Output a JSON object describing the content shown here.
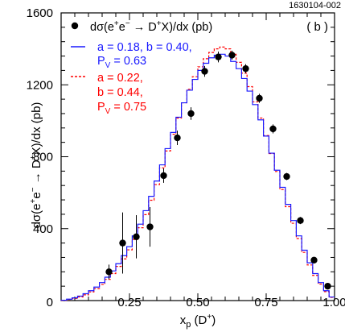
{
  "chart_data": {
    "type": "scatter",
    "figure_id": "1630104-002",
    "panel_label": "( b )",
    "xlabel": {
      "main": "x",
      "sub": "p",
      "rest": " (D",
      "sup": "+",
      "end": ")"
    },
    "ylabel": {
      "pre": "dσ(e",
      "sup1": "+",
      "mid": "e",
      "sup2": "−",
      "arrow": " → D",
      "sup3": "+",
      "post": "X)/dx (pb)"
    },
    "xlim": [
      0,
      1.0
    ],
    "ylim": [
      0,
      1600
    ],
    "xticks": [
      {
        "v": 0.25,
        "label": "0.25"
      },
      {
        "v": 0.5,
        "label": "0.50"
      },
      {
        "v": 0.75,
        "label": "0.75"
      },
      {
        "v": 1.0,
        "label": "1.00"
      }
    ],
    "x_origin_label": "0",
    "yticks": [
      {
        "v": 400,
        "label": "400"
      },
      {
        "v": 800,
        "label": "800"
      },
      {
        "v": 1200,
        "label": "1200"
      },
      {
        "v": 1600,
        "label": "1600"
      }
    ],
    "y_origin_label": "0",
    "legend": {
      "placement": "top-left",
      "data": {
        "pre": "dσ(e",
        "sup1": "+",
        "mid": "e",
        "sup2": "−",
        "arrow": " → D",
        "sup3": "+",
        "post": "X)/dx (pb)"
      },
      "blue": {
        "line1": "a = 0.18, b = 0.40,",
        "line2_pre": "P",
        "line2_sub": "V",
        "line2_post": " = 0.63"
      },
      "red": {
        "line1": "a = 0.22,",
        "line2": "b = 0.44,",
        "line3_pre": "P",
        "line3_sub": "V",
        "line3_post": " = 0.75"
      }
    },
    "colors": {
      "data": "#000000",
      "blue": "#1a1aff",
      "red": "#ff0000"
    },
    "series": [
      {
        "style": "points-with-errors",
        "points": [
          {
            "x": 0.175,
            "y": 160,
            "err": 40
          },
          {
            "x": 0.225,
            "y": 320,
            "err": 170
          },
          {
            "x": 0.275,
            "y": 355,
            "err": 120
          },
          {
            "x": 0.325,
            "y": 410,
            "err": 110
          },
          {
            "x": 0.375,
            "y": 695,
            "err": 40
          },
          {
            "x": 0.425,
            "y": 905,
            "err": 40
          },
          {
            "x": 0.475,
            "y": 1040,
            "err": 35
          },
          {
            "x": 0.525,
            "y": 1275,
            "err": 30
          },
          {
            "x": 0.575,
            "y": 1355,
            "err": 30
          },
          {
            "x": 0.625,
            "y": 1365,
            "err": 25
          },
          {
            "x": 0.675,
            "y": 1290,
            "err": 25
          },
          {
            "x": 0.725,
            "y": 1125,
            "err": 25
          },
          {
            "x": 0.775,
            "y": 955,
            "err": 25
          },
          {
            "x": 0.825,
            "y": 690,
            "err": 20
          },
          {
            "x": 0.875,
            "y": 445,
            "err": 20
          },
          {
            "x": 0.925,
            "y": 225,
            "err": 15
          },
          {
            "x": 0.975,
            "y": 80,
            "err": 12
          }
        ]
      },
      {
        "style": "histogram-solid",
        "bin_width": 0.02,
        "x_start": 0.0,
        "values": [
          2,
          8,
          15,
          25,
          38,
          55,
          75,
          100,
          130,
          165,
          205,
          250,
          300,
          360,
          425,
          500,
          580,
          665,
          755,
          845,
          935,
          1020,
          1100,
          1170,
          1230,
          1280,
          1320,
          1350,
          1365,
          1370,
          1360,
          1330,
          1290,
          1235,
          1165,
          1090,
          1005,
          915,
          820,
          725,
          630,
          535,
          445,
          360,
          280,
          210,
          150,
          100,
          55,
          20
        ]
      },
      {
        "style": "histogram-dashed",
        "bin_width": 0.02,
        "x_start": 0.0,
        "values": [
          1,
          6,
          12,
          20,
          32,
          48,
          66,
          90,
          118,
          150,
          190,
          232,
          282,
          340,
          405,
          478,
          558,
          645,
          738,
          832,
          925,
          1015,
          1100,
          1175,
          1245,
          1300,
          1345,
          1380,
          1400,
          1410,
          1400,
          1370,
          1325,
          1265,
          1190,
          1105,
          1015,
          918,
          818,
          718,
          618,
          522,
          430,
          345,
          268,
          198,
          140,
          92,
          50,
          18
        ]
      }
    ]
  }
}
